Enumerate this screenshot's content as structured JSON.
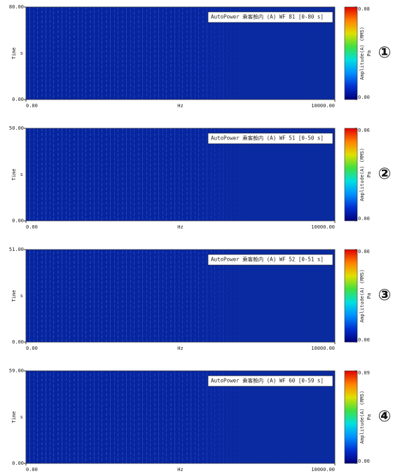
{
  "chart_data": [
    {
      "type": "spectrogram",
      "title": "AutoPower 乘客舱内 (A) WF 81 [0-80 s]",
      "marker": "①",
      "xlabel": "Hz",
      "ylabel": "Time",
      "y_unit": "s",
      "xlim": [
        0,
        10000
      ],
      "xticks": [
        {
          "value": 0,
          "label": "0.00"
        },
        {
          "value": 10000,
          "label": "10000.00"
        }
      ],
      "ylim": [
        0,
        80
      ],
      "yticks": [
        {
          "value": 0,
          "label": "0.00"
        },
        {
          "value": 80,
          "label": "80.00"
        }
      ],
      "colorbar": {
        "label": "Amplitude(A) (RMS)",
        "unit": "Pa",
        "lim": [
          0,
          0.08
        ],
        "ticks": [
          {
            "value": 0,
            "label": "0.00"
          },
          {
            "value": 0.08,
            "label": "0.08"
          }
        ]
      },
      "colormap": [
        "#00007a",
        "#0030d0",
        "#0090ff",
        "#00e0e0",
        "#40e040",
        "#e0e000",
        "#ff8000",
        "#e00000"
      ]
    },
    {
      "type": "spectrogram",
      "title": "AutoPower 乘客舱内 (A) WF 51 [0-50 s]",
      "marker": "②",
      "xlabel": "Hz",
      "ylabel": "Time",
      "y_unit": "s",
      "xlim": [
        0,
        10000
      ],
      "xticks": [
        {
          "value": 0,
          "label": "0.00"
        },
        {
          "value": 10000,
          "label": "10000.00"
        }
      ],
      "ylim": [
        0,
        50
      ],
      "yticks": [
        {
          "value": 0,
          "label": "0.00"
        },
        {
          "value": 50,
          "label": "50.00"
        }
      ],
      "colorbar": {
        "label": "Amplitude(A) (RMS)",
        "unit": "Pa",
        "lim": [
          0,
          0.06
        ],
        "ticks": [
          {
            "value": 0,
            "label": "0.00"
          },
          {
            "value": 0.06,
            "label": "0.06"
          }
        ]
      },
      "colormap": [
        "#00007a",
        "#0030d0",
        "#0090ff",
        "#00e0e0",
        "#40e040",
        "#e0e000",
        "#ff8000",
        "#e00000"
      ]
    },
    {
      "type": "spectrogram",
      "title": "AutoPower 乘客舱内 (A) WF 52 [0-51 s]",
      "marker": "③",
      "xlabel": "Hz",
      "ylabel": "Time",
      "y_unit": "s",
      "xlim": [
        0,
        10000
      ],
      "xticks": [
        {
          "value": 0,
          "label": "0.00"
        },
        {
          "value": 10000,
          "label": "10000.00"
        }
      ],
      "ylim": [
        0,
        51
      ],
      "yticks": [
        {
          "value": 0,
          "label": "0.00"
        },
        {
          "value": 51,
          "label": "51.00"
        }
      ],
      "colorbar": {
        "label": "Amplitude(A) (RMS)",
        "unit": "Pa",
        "lim": [
          0,
          0.06
        ],
        "ticks": [
          {
            "value": 0,
            "label": "0.00"
          },
          {
            "value": 0.06,
            "label": "0.06"
          }
        ]
      },
      "colormap": [
        "#00007a",
        "#0030d0",
        "#0090ff",
        "#00e0e0",
        "#40e040",
        "#e0e000",
        "#ff8000",
        "#e00000"
      ]
    },
    {
      "type": "spectrogram",
      "title": "AutoPower 乘客舱内 (A) WF 60 [0-59 s]",
      "marker": "④",
      "xlabel": "Hz",
      "ylabel": "Time",
      "y_unit": "s",
      "xlim": [
        0,
        10000
      ],
      "xticks": [
        {
          "value": 0,
          "label": "0.00"
        },
        {
          "value": 10000,
          "label": "10000.00"
        }
      ],
      "ylim": [
        0,
        59
      ],
      "yticks": [
        {
          "value": 0,
          "label": "0.00"
        },
        {
          "value": 59,
          "label": "59.00"
        }
      ],
      "colorbar": {
        "label": "Amplitude(A) (RMS)",
        "unit": "Pa",
        "lim": [
          0,
          0.09
        ],
        "ticks": [
          {
            "value": 0,
            "label": "0.00"
          },
          {
            "value": 0.09,
            "label": "0.09"
          }
        ]
      },
      "colormap": [
        "#00007a",
        "#0030d0",
        "#0090ff",
        "#00e0e0",
        "#40e040",
        "#e0e000",
        "#ff8000",
        "#e00000"
      ]
    }
  ]
}
